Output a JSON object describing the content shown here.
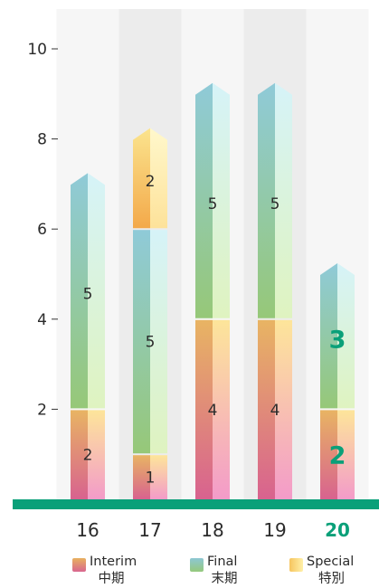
{
  "chart_data": {
    "type": "bar",
    "stacked": true,
    "categories": [
      "16",
      "17",
      "18",
      "19",
      "20"
    ],
    "highlight_category": "20",
    "highlight_color": "#0aa079",
    "series": [
      {
        "name": "Interim",
        "name_ja": "中期",
        "values": [
          2,
          1,
          4,
          4,
          2
        ]
      },
      {
        "name": "Special",
        "name_ja": "特別",
        "values": [
          0,
          0,
          0,
          0,
          0
        ]
      },
      {
        "name": "Final",
        "name_ja": "末期",
        "values": [
          5,
          5,
          5,
          5,
          3
        ]
      },
      {
        "name": "Special",
        "name_ja": "特別",
        "values": [
          0,
          2,
          0,
          0,
          0
        ]
      }
    ],
    "yticks": [
      2,
      4,
      6,
      8,
      10
    ],
    "ylim": [
      0,
      10.5
    ],
    "legend_position": "bottom"
  }
}
